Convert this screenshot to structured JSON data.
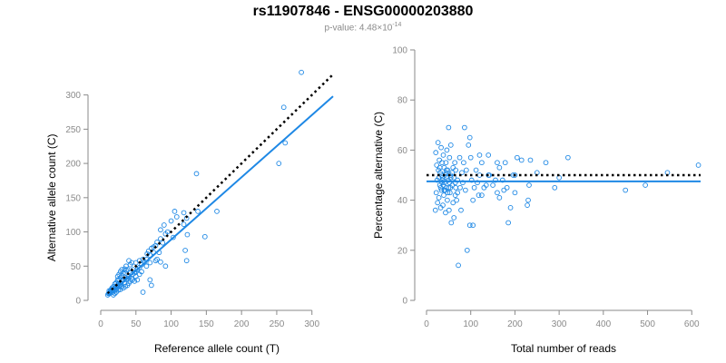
{
  "header": {
    "title": "rs11907846 - ENSG00000203880",
    "pvalue_prefix": "p-value: 4.48×10",
    "pvalue_exponent": "-14"
  },
  "colors": {
    "points": "#1e88e5",
    "fit_line": "#1e88e5",
    "reference_line": "#000000",
    "axis": "#8a8a8a"
  },
  "chart_data": [
    {
      "type": "scatter",
      "xlabel": "Reference allele count (T)",
      "ylabel": "Alternative allele count (C)",
      "xlim": [
        0,
        330
      ],
      "ylim": [
        0,
        330
      ],
      "xticks": [
        0,
        50,
        100,
        150,
        200,
        250,
        300
      ],
      "yticks": [
        0,
        50,
        100,
        150,
        200,
        250,
        300
      ],
      "reference_line": {
        "style": "dotted",
        "from": [
          10,
          10
        ],
        "to": [
          330,
          330
        ]
      },
      "fit_line": {
        "style": "solid",
        "from": [
          10,
          7
        ],
        "to": [
          330,
          298
        ]
      },
      "points": [
        [
          285,
          333
        ],
        [
          260,
          282
        ],
        [
          262,
          230
        ],
        [
          253,
          200
        ],
        [
          136,
          185
        ],
        [
          165,
          130
        ],
        [
          138,
          130
        ],
        [
          118,
          128
        ],
        [
          105,
          130
        ],
        [
          108,
          122
        ],
        [
          122,
          120
        ],
        [
          118,
          111
        ],
        [
          123,
          96
        ],
        [
          100,
          116
        ],
        [
          90,
          110
        ],
        [
          95,
          100
        ],
        [
          92,
          97
        ],
        [
          103,
          92
        ],
        [
          85,
          103
        ],
        [
          85,
          90
        ],
        [
          88,
          84
        ],
        [
          80,
          85
        ],
        [
          78,
          80
        ],
        [
          75,
          78
        ],
        [
          72,
          76
        ],
        [
          68,
          72
        ],
        [
          66,
          68
        ],
        [
          120,
          73
        ],
        [
          122,
          58
        ],
        [
          148,
          93
        ],
        [
          83,
          70
        ],
        [
          85,
          56
        ],
        [
          80,
          60
        ],
        [
          78,
          58
        ],
        [
          70,
          30
        ],
        [
          72,
          22
        ],
        [
          60,
          12
        ],
        [
          92,
          50
        ],
        [
          70,
          55
        ],
        [
          65,
          50
        ],
        [
          62,
          56
        ],
        [
          58,
          52
        ],
        [
          55,
          48
        ],
        [
          52,
          45
        ],
        [
          50,
          42
        ],
        [
          48,
          40
        ],
        [
          46,
          45
        ],
        [
          45,
          38
        ],
        [
          42,
          40
        ],
        [
          40,
          35
        ],
        [
          38,
          32
        ],
        [
          36,
          30
        ],
        [
          35,
          40
        ],
        [
          33,
          34
        ],
        [
          32,
          30
        ],
        [
          30,
          28
        ],
        [
          29,
          24
        ],
        [
          28,
          26
        ],
        [
          27,
          22
        ],
        [
          26,
          20
        ],
        [
          25,
          24
        ],
        [
          24,
          22
        ],
        [
          23,
          18
        ],
        [
          22,
          20
        ],
        [
          21,
          16
        ],
        [
          20,
          18
        ],
        [
          19,
          14
        ],
        [
          18,
          16
        ],
        [
          17,
          12
        ],
        [
          16,
          14
        ],
        [
          15,
          13
        ],
        [
          14,
          12
        ],
        [
          13,
          10
        ],
        [
          12,
          11
        ],
        [
          11,
          10
        ],
        [
          10,
          8
        ],
        [
          30,
          36
        ],
        [
          28,
          33
        ],
        [
          26,
          30
        ],
        [
          34,
          26
        ],
        [
          38,
          22
        ],
        [
          42,
          28
        ],
        [
          44,
          32
        ],
        [
          22,
          26
        ],
        [
          24,
          30
        ],
        [
          20,
          24
        ],
        [
          18,
          20
        ],
        [
          16,
          18
        ],
        [
          15,
          16
        ],
        [
          14,
          15
        ],
        [
          12,
          14
        ],
        [
          30,
          20
        ],
        [
          32,
          18
        ],
        [
          28,
          16
        ],
        [
          25,
          15
        ],
        [
          22,
          12
        ],
        [
          20,
          10
        ],
        [
          18,
          8
        ],
        [
          35,
          20
        ],
        [
          40,
          25
        ],
        [
          45,
          30
        ],
        [
          50,
          35
        ],
        [
          55,
          38
        ],
        [
          48,
          28
        ],
        [
          52,
          30
        ],
        [
          58,
          42
        ],
        [
          42,
          52
        ],
        [
          44,
          55
        ],
        [
          36,
          50
        ],
        [
          34,
          46
        ],
        [
          30,
          45
        ],
        [
          28,
          42
        ],
        [
          26,
          38
        ],
        [
          24,
          35
        ],
        [
          60,
          60
        ],
        [
          55,
          58
        ],
        [
          50,
          55
        ],
        [
          65,
          60
        ],
        [
          70,
          66
        ],
        [
          75,
          70
        ],
        [
          40,
          58
        ],
        [
          36,
          44
        ],
        [
          32,
          40
        ],
        [
          38,
          45
        ]
      ]
    },
    {
      "type": "scatter",
      "xlabel": "Total number of reads",
      "ylabel": "Percentage alternative (C)",
      "xlim": [
        0,
        620
      ],
      "ylim": [
        0,
        100
      ],
      "xticks": [
        0,
        100,
        200,
        300,
        400,
        500,
        600
      ],
      "yticks": [
        0,
        20,
        40,
        60,
        80,
        100
      ],
      "reference_line": {
        "style": "dotted",
        "y": 50
      },
      "fit_line": {
        "style": "solid",
        "y": 47.5
      },
      "points": [
        [
          615,
          54
        ],
        [
          545,
          51
        ],
        [
          495,
          46
        ],
        [
          450,
          44
        ],
        [
          320,
          57
        ],
        [
          300,
          49
        ],
        [
          290,
          45
        ],
        [
          270,
          55
        ],
        [
          250,
          51
        ],
        [
          235,
          56
        ],
        [
          232,
          46
        ],
        [
          230,
          40
        ],
        [
          228,
          38
        ],
        [
          215,
          56
        ],
        [
          205,
          57
        ],
        [
          200,
          43
        ],
        [
          196,
          50
        ],
        [
          190,
          37
        ],
        [
          185,
          31
        ],
        [
          182,
          45
        ],
        [
          178,
          55
        ],
        [
          172,
          48
        ],
        [
          165,
          53
        ],
        [
          160,
          43
        ],
        [
          150,
          46
        ],
        [
          142,
          50
        ],
        [
          140,
          58
        ],
        [
          135,
          46
        ],
        [
          130,
          45
        ],
        [
          125,
          42
        ],
        [
          120,
          50
        ],
        [
          118,
          42
        ],
        [
          115,
          47
        ],
        [
          112,
          52
        ],
        [
          108,
          45
        ],
        [
          105,
          40
        ],
        [
          102,
          48
        ],
        [
          100,
          57
        ],
        [
          98,
          65
        ],
        [
          95,
          62
        ],
        [
          92,
          20
        ],
        [
          90,
          52
        ],
        [
          88,
          44
        ],
        [
          86,
          69
        ],
        [
          84,
          55
        ],
        [
          82,
          47
        ],
        [
          80,
          51
        ],
        [
          78,
          36
        ],
        [
          76,
          45
        ],
        [
          75,
          57
        ],
        [
          72,
          14
        ],
        [
          70,
          48
        ],
        [
          68,
          40
        ],
        [
          66,
          52
        ],
        [
          65,
          42
        ],
        [
          64,
          55
        ],
        [
          62,
          33
        ],
        [
          60,
          39
        ],
        [
          58,
          46
        ],
        [
          56,
          31
        ],
        [
          55,
          62
        ],
        [
          54,
          50
        ],
        [
          53,
          43
        ],
        [
          52,
          57
        ],
        [
          51,
          36
        ],
        [
          50,
          69
        ],
        [
          49,
          48
        ],
        [
          48,
          52
        ],
        [
          47,
          40
        ],
        [
          46,
          60
        ],
        [
          45,
          45
        ],
        [
          44,
          55
        ],
        [
          43,
          35
        ],
        [
          42,
          50
        ],
        [
          41,
          47
        ],
        [
          40,
          53
        ],
        [
          39,
          42
        ],
        [
          38,
          58
        ],
        [
          37,
          38
        ],
        [
          36,
          49
        ],
        [
          35,
          55
        ],
        [
          34,
          44
        ],
        [
          33,
          61
        ],
        [
          32,
          37
        ],
        [
          31,
          51
        ],
        [
          30,
          46
        ],
        [
          29,
          56
        ],
        [
          28,
          41
        ],
        [
          27,
          52
        ],
        [
          26,
          63
        ],
        [
          25,
          39
        ],
        [
          24,
          48
        ],
        [
          23,
          54
        ],
        [
          22,
          43
        ],
        [
          21,
          59
        ],
        [
          20,
          36
        ],
        [
          35,
          47
        ],
        [
          40,
          44
        ],
        [
          45,
          52
        ],
        [
          50,
          45
        ],
        [
          55,
          49
        ],
        [
          60,
          53
        ],
        [
          65,
          47
        ],
        [
          70,
          43
        ],
        [
          28,
          49
        ],
        [
          30,
          53
        ],
        [
          32,
          45
        ],
        [
          34,
          50
        ],
        [
          36,
          48
        ],
        [
          38,
          46
        ],
        [
          42,
          44
        ],
        [
          44,
          51
        ],
        [
          46,
          49
        ],
        [
          48,
          43
        ],
        [
          52,
          47
        ],
        [
          54,
          45
        ],
        [
          58,
          51
        ],
        [
          62,
          49
        ],
        [
          66,
          45
        ],
        [
          105,
          30
        ],
        [
          98,
          30
        ],
        [
          120,
          58
        ],
        [
          125,
          55
        ],
        [
          200,
          50
        ],
        [
          140,
          50
        ],
        [
          156,
          48
        ],
        [
          165,
          41
        ],
        [
          175,
          44
        ],
        [
          160,
          55
        ]
      ]
    }
  ]
}
